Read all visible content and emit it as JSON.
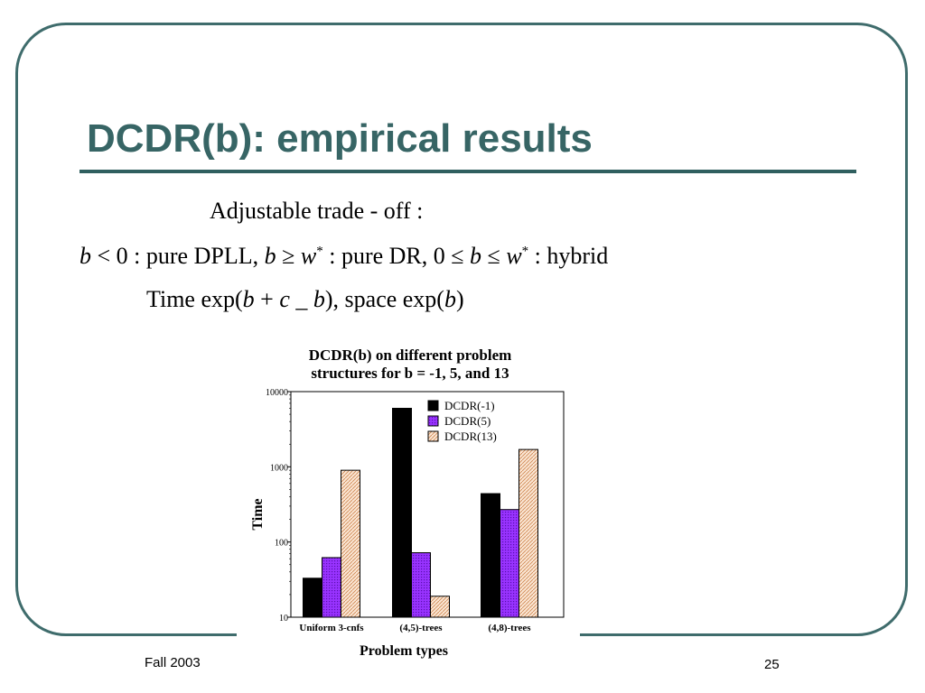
{
  "slide": {
    "title": "DCDR(b): empirical results",
    "footer_left": "Fall 2003",
    "page_number": "25"
  },
  "text": {
    "line1": "Adjustable trade - off :",
    "line2": {
      "b1": "b",
      "lt": " < 0 :  pure DPLL,  ",
      "b2": "b",
      "geq": " ≥ ",
      "w1": "w",
      "star1": "*",
      "mid": " :  pure DR, 0 ≤ ",
      "b3": "b",
      "leq": " ≤ ",
      "w2": "w",
      "star2": "*",
      "end": " : hybrid"
    },
    "line3": {
      "a": "Time exp(",
      "b1": "b",
      "plus": " + ",
      "c": "c",
      "us": " _ ",
      "b2": "b",
      "mid": "), space exp(",
      "b3": "b",
      "end": ")"
    }
  },
  "chart_data": {
    "type": "bar",
    "title_lines": [
      "DCDR(b) on different problem",
      "structures for b = -1, 5, and 13"
    ],
    "xlabel": "Problem types",
    "ylabel": "Time",
    "yscale": "log",
    "ylim": [
      10,
      10000
    ],
    "yticks": [
      "10",
      "100",
      "1000",
      "10000"
    ],
    "categories": [
      "Uniform  3-cnfs",
      "(4,5)-trees",
      "(4,8)-trees"
    ],
    "series": [
      {
        "name": "DCDR(-1)",
        "values": [
          33,
          6000,
          440
        ],
        "color": "#000000",
        "pattern": "solid"
      },
      {
        "name": "DCDR(5)",
        "values": [
          62,
          72,
          270
        ],
        "color": "#9933ff",
        "pattern": "dots"
      },
      {
        "name": "DCDR(13)",
        "values": [
          900,
          19,
          1700
        ],
        "color": "#e8a070",
        "pattern": "hatch"
      }
    ],
    "legend_position": "top-right",
    "grid": false
  }
}
